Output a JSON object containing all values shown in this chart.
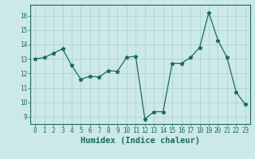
{
  "x": [
    0,
    1,
    2,
    3,
    4,
    5,
    6,
    7,
    8,
    9,
    10,
    11,
    12,
    13,
    14,
    15,
    16,
    17,
    18,
    19,
    20,
    21,
    22,
    23
  ],
  "y": [
    13.0,
    13.1,
    13.4,
    13.7,
    12.55,
    11.6,
    11.8,
    11.75,
    12.2,
    12.15,
    13.1,
    13.2,
    8.85,
    9.35,
    9.35,
    12.7,
    12.7,
    13.1,
    13.8,
    16.2,
    14.3,
    13.1,
    10.7,
    9.85
  ],
  "xlabel": "Humidex (Indice chaleur)",
  "xlim": [
    -0.5,
    23.5
  ],
  "ylim": [
    8.5,
    16.75
  ],
  "yticks": [
    9,
    10,
    11,
    12,
    13,
    14,
    15,
    16
  ],
  "xticks": [
    0,
    1,
    2,
    3,
    4,
    5,
    6,
    7,
    8,
    9,
    10,
    11,
    12,
    13,
    14,
    15,
    16,
    17,
    18,
    19,
    20,
    21,
    22,
    23
  ],
  "line_color": "#1a6b5a",
  "marker": "*",
  "marker_size": 3.5,
  "bg_color": "#cce8e8",
  "grid_color": "#aacfcf",
  "tick_label_fontsize": 5.5,
  "xlabel_fontsize": 7.5
}
